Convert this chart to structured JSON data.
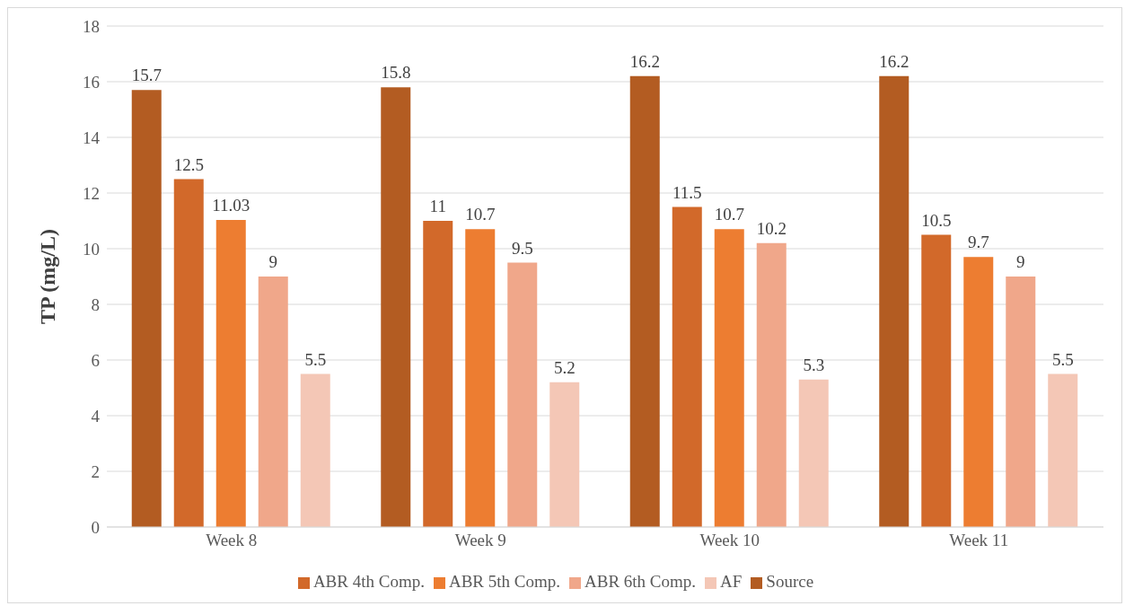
{
  "chart_data": {
    "type": "bar",
    "ylabel": "TP (mg/L)",
    "categories": [
      "Week 8",
      "Week 9",
      "Week 10",
      "Week 11"
    ],
    "series": [
      {
        "name": "Source",
        "color": "#b35c22",
        "values": [
          15.7,
          15.8,
          16.2,
          16.2
        ]
      },
      {
        "name": "ABR 4th Comp.",
        "color": "#d2692a",
        "values": [
          12.5,
          11,
          11.5,
          10.5
        ]
      },
      {
        "name": "ABR 5th Comp.",
        "color": "#ed7d31",
        "values": [
          11.03,
          10.7,
          10.7,
          9.7
        ]
      },
      {
        "name": "ABR 6th Comp.",
        "color": "#f0a78a",
        "values": [
          9,
          9.5,
          10.2,
          9
        ]
      },
      {
        "name": "AF",
        "color": "#f4c7b6",
        "values": [
          5.5,
          5.2,
          5.3,
          5.5
        ]
      }
    ],
    "ylim": [
      0,
      18
    ],
    "yticks": [
      0,
      2,
      4,
      6,
      8,
      10,
      12,
      14,
      16,
      18
    ],
    "grid": "y",
    "legend": "bottom",
    "data_labels": true
  }
}
